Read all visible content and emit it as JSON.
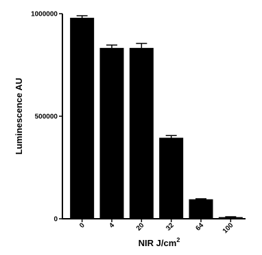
{
  "chart_data": {
    "type": "bar",
    "categories": [
      "0",
      "4",
      "20",
      "32",
      "64",
      "100"
    ],
    "values": [
      980000,
      833000,
      833000,
      395000,
      95000,
      8000
    ],
    "errors": [
      10000,
      14000,
      22000,
      11000,
      2500,
      2000
    ],
    "title": "",
    "xlabel": "NIR J/cm",
    "xlabel_superscript": "2",
    "ylabel": "Luminescence AU",
    "ylim": [
      0,
      1000000
    ],
    "yticks": [
      0,
      500000,
      1000000
    ],
    "ytick_labels": [
      "0",
      "500000",
      "1000000"
    ],
    "bar_color": "#000000",
    "grid": false
  }
}
